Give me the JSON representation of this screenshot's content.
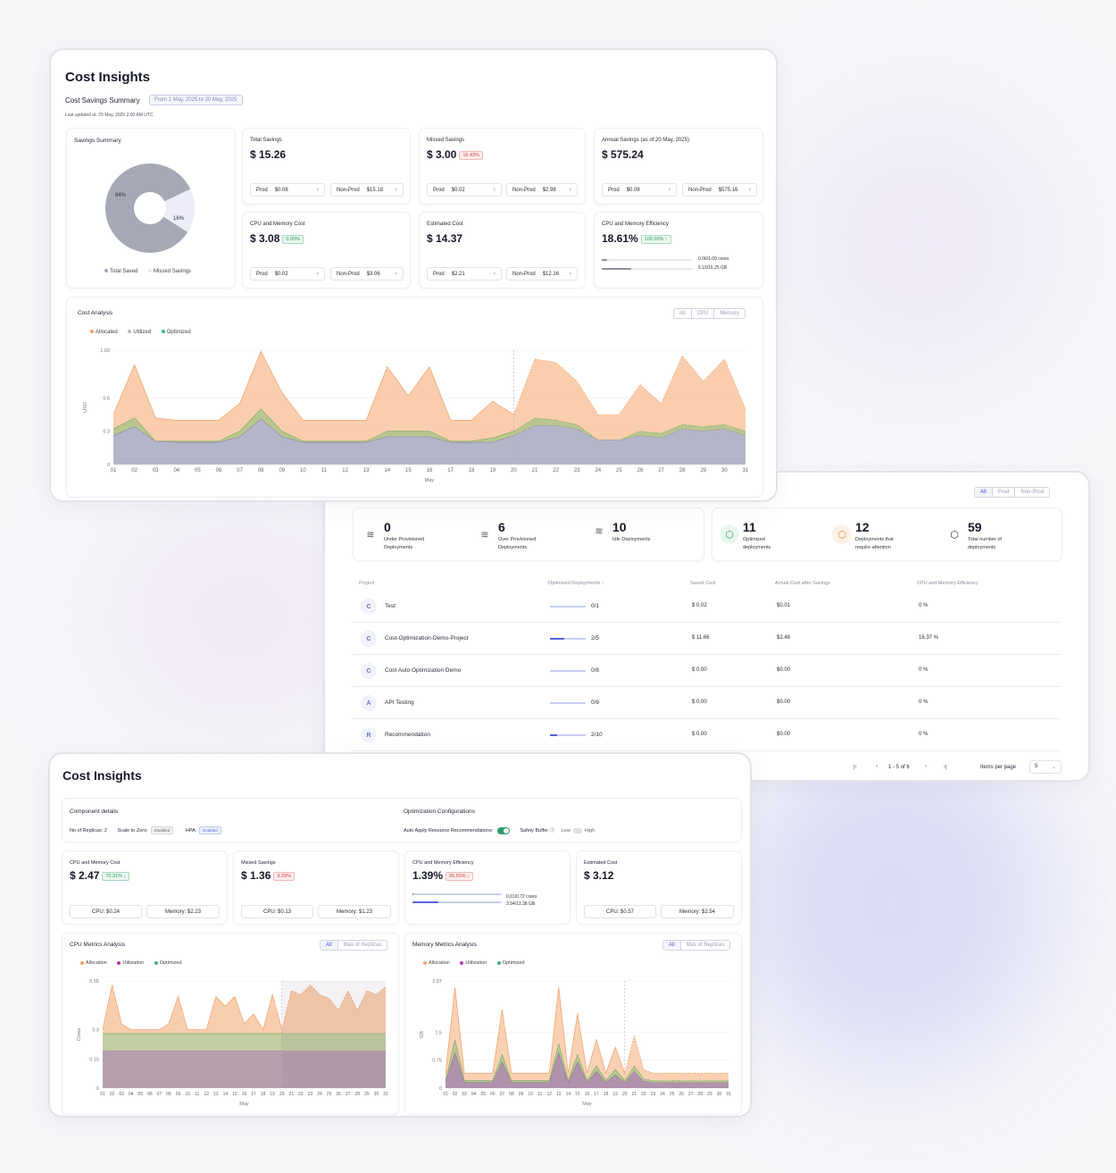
{
  "colors": {
    "allocated": "#f7b98a",
    "utilized": "#a9aac0",
    "optimized": "#3fb37f",
    "accent": "#4a55c7"
  },
  "top": {
    "title": "Cost Insights",
    "summary_label": "Cost Savings Summary",
    "date_range": "From 1 May, 2025 to 20 May, 2025",
    "last_updated": "Last updated at: 20 May, 2025 2.00 AM UTC",
    "savings_summary": {
      "title": "Savings Summary",
      "saved_pct": "84%",
      "missed_pct": "16%",
      "saved_value": 84,
      "missed_value": 16,
      "legend_saved": "Total Saved",
      "legend_missed": "Missed Savings"
    },
    "cards": [
      {
        "title": "Total Savings",
        "value": "$ 15.26",
        "badge": "",
        "prod_label": "Prod",
        "prod": "$0.08",
        "nonprod_label": "Non-Prod",
        "nonprod": "$15.18"
      },
      {
        "title": "Missed Savings",
        "value": "$ 3.00",
        "badge": "16.43%",
        "prod_label": "Prod",
        "prod": "$0.02",
        "nonprod_label": "Non-Prod",
        "nonprod": "$2.98"
      },
      {
        "title": "Annual Savings (as of 20 May, 2025)",
        "value": "$ 575.24",
        "badge": "",
        "prod_label": "Prod",
        "prod": "$0.08",
        "nonprod_label": "Non-Prod",
        "nonprod": "$575.16"
      },
      {
        "title": "CPU and Memory Cost",
        "value": "$ 3.08",
        "badge": "0.00%",
        "prod_label": "Prod",
        "prod": "$0.02",
        "nonprod_label": "Non-Prod",
        "nonprod": "$3.06"
      },
      {
        "title": "Estimated Cost",
        "value": "$ 14.37",
        "badge": "",
        "prod_label": "Prod",
        "prod": "$2.21",
        "nonprod_label": "Non-Prod",
        "nonprod": "$12.16"
      }
    ],
    "efficiency": {
      "title": "CPU and Memory Efficiency",
      "value": "18.61%",
      "badge": "100.00% ↑",
      "cpu_label": "0.06/1.09 cores",
      "mem_label": "5.15/16.25 GB",
      "cpu_frac": 0.055,
      "mem_frac": 0.32
    }
  },
  "top_chart": {
    "title": "Cost Analysis",
    "filters": [
      "All",
      "CPU",
      "Memory"
    ],
    "legend": [
      "Allocated",
      "Utilized",
      "Optimized"
    ],
    "ylabel": "USD",
    "xlabel": "May",
    "yticks": [
      "1.03",
      "0.6",
      "0.3",
      "0"
    ]
  },
  "chart_data": [
    {
      "type": "area",
      "title": "Cost Analysis",
      "xlabel": "May",
      "ylabel": "USD",
      "ylim": [
        0,
        1.03
      ],
      "x": [
        "01",
        "02",
        "03",
        "04",
        "05",
        "06",
        "07",
        "08",
        "09",
        "10",
        "11",
        "12",
        "13",
        "14",
        "15",
        "16",
        "17",
        "18",
        "19",
        "20",
        "21",
        "22",
        "23",
        "24",
        "25",
        "26",
        "27",
        "28",
        "29",
        "30",
        "31"
      ],
      "forecast_from": "20",
      "series": [
        {
          "name": "Allocated",
          "values": [
            0.45,
            0.9,
            0.42,
            0.4,
            0.4,
            0.4,
            0.55,
            1.02,
            0.65,
            0.4,
            0.4,
            0.4,
            0.4,
            0.88,
            0.62,
            0.88,
            0.4,
            0.4,
            0.57,
            0.45,
            0.95,
            0.92,
            0.75,
            0.45,
            0.45,
            0.72,
            0.55,
            0.98,
            0.75,
            0.95,
            0.5
          ]
        },
        {
          "name": "Optimized",
          "values": [
            0.32,
            0.42,
            0.21,
            0.21,
            0.21,
            0.21,
            0.3,
            0.5,
            0.3,
            0.21,
            0.21,
            0.21,
            0.21,
            0.3,
            0.3,
            0.3,
            0.21,
            0.21,
            0.24,
            0.3,
            0.42,
            0.4,
            0.36,
            0.22,
            0.22,
            0.3,
            0.28,
            0.36,
            0.34,
            0.36,
            0.3
          ]
        },
        {
          "name": "Utilized",
          "values": [
            0.26,
            0.34,
            0.21,
            0.2,
            0.2,
            0.2,
            0.25,
            0.41,
            0.25,
            0.2,
            0.2,
            0.2,
            0.2,
            0.25,
            0.25,
            0.25,
            0.2,
            0.2,
            0.2,
            0.26,
            0.35,
            0.35,
            0.32,
            0.22,
            0.22,
            0.26,
            0.24,
            0.32,
            0.3,
            0.32,
            0.26
          ]
        }
      ]
    },
    {
      "type": "area",
      "title": "CPU Metrics Analysis",
      "xlabel": "May",
      "ylabel": "Cores",
      "ylim": [
        0,
        0.55
      ],
      "yticks": [
        "0.55",
        "0.3",
        "0.15",
        "0"
      ],
      "forecast_from": "20",
      "series": [
        {
          "name": "Allocation",
          "values": [
            0.3,
            0.53,
            0.33,
            0.3,
            0.3,
            0.3,
            0.3,
            0.33,
            0.47,
            0.3,
            0.3,
            0.3,
            0.47,
            0.42,
            0.47,
            0.33,
            0.38,
            0.3,
            0.48,
            0.3,
            0.5,
            0.48,
            0.53,
            0.48,
            0.46,
            0.4,
            0.5,
            0.4,
            0.5,
            0.48,
            0.52
          ]
        },
        {
          "name": "Optimization",
          "values": [
            0.28,
            0.28,
            0.28,
            0.28,
            0.28,
            0.28,
            0.28,
            0.28,
            0.28,
            0.28,
            0.28,
            0.28,
            0.28,
            0.28,
            0.28,
            0.28,
            0.28,
            0.28,
            0.28,
            0.28,
            0.28,
            0.28,
            0.28,
            0.28,
            0.28,
            0.28,
            0.28,
            0.28,
            0.28,
            0.28,
            0.28
          ]
        },
        {
          "name": "Utilization",
          "values": [
            0.19,
            0.19,
            0.19,
            0.19,
            0.19,
            0.19,
            0.19,
            0.19,
            0.19,
            0.19,
            0.19,
            0.19,
            0.19,
            0.19,
            0.19,
            0.19,
            0.19,
            0.19,
            0.19,
            0.19,
            0.19,
            0.19,
            0.19,
            0.19,
            0.19,
            0.19,
            0.19,
            0.19,
            0.19,
            0.19,
            0.19
          ]
        }
      ]
    },
    {
      "type": "area",
      "title": "Memory Metrics Analysis",
      "xlabel": "May",
      "ylabel": "GB",
      "ylim": [
        0,
        2.87
      ],
      "yticks": [
        "2.87",
        "1.5",
        "0.75",
        "0"
      ],
      "forecast_from": "20",
      "series": [
        {
          "name": "Allocation",
          "values": [
            0.4,
            2.7,
            0.4,
            0.4,
            0.4,
            0.4,
            2.1,
            0.4,
            0.4,
            0.4,
            0.4,
            0.4,
            2.7,
            0.4,
            2.0,
            0.4,
            1.3,
            0.4,
            1.1,
            0.4,
            1.4,
            0.5,
            0.4,
            0.4,
            0.4,
            0.4,
            0.4,
            0.4,
            0.4,
            0.4,
            0.4
          ]
        },
        {
          "name": "Optimization",
          "values": [
            0.2,
            1.3,
            0.2,
            0.2,
            0.2,
            0.2,
            0.9,
            0.2,
            0.2,
            0.2,
            0.2,
            0.2,
            1.2,
            0.2,
            0.9,
            0.2,
            0.6,
            0.2,
            0.5,
            0.2,
            0.6,
            0.25,
            0.2,
            0.2,
            0.2,
            0.2,
            0.2,
            0.2,
            0.2,
            0.2,
            0.2
          ]
        },
        {
          "name": "Utilization",
          "values": [
            0.15,
            0.95,
            0.15,
            0.15,
            0.15,
            0.15,
            0.7,
            0.15,
            0.15,
            0.15,
            0.15,
            0.15,
            0.95,
            0.15,
            0.7,
            0.15,
            0.45,
            0.15,
            0.35,
            0.15,
            0.45,
            0.18,
            0.15,
            0.15,
            0.15,
            0.15,
            0.15,
            0.15,
            0.15,
            0.15,
            0.15
          ]
        }
      ]
    }
  ],
  "mid": {
    "filters": [
      "All",
      "Prod",
      "Non-Prod"
    ],
    "tiles_left": [
      {
        "value": "0",
        "label1": "Under Provisioned",
        "label2": "Deployments"
      },
      {
        "value": "6",
        "label1": "Over Provisioned",
        "label2": "Deployments"
      },
      {
        "value": "10",
        "label1": "Idle Deployments",
        "label2": ""
      }
    ],
    "tiles_right": [
      {
        "value": "11",
        "label1": "Optimized",
        "label2": "deployments"
      },
      {
        "value": "12",
        "label1": "Deployments that",
        "label2": "require attention"
      },
      {
        "value": "59",
        "label1": "Total number of",
        "label2": "deployments"
      }
    ],
    "headers": [
      "Project",
      "Optimized Deployments ↑",
      "Saved Cost",
      "Actual Cost after Savings",
      "CPU and Memory Efficiency"
    ],
    "rows": [
      {
        "initial": "C",
        "name": "Test",
        "opt": "0/1",
        "frac": 0.0,
        "saved": "$ 0.02",
        "actual": "$0.01",
        "eff": "0 %"
      },
      {
        "initial": "C",
        "name": "Cost-Optimization-Demo-Project",
        "opt": "2/5",
        "frac": 0.4,
        "saved": "$ 11.66",
        "actual": "$2.48",
        "eff": "16.37 %"
      },
      {
        "initial": "C",
        "name": "Cost Auto Optimization Demo",
        "opt": "0/8",
        "frac": 0.0,
        "saved": "$ 0.00",
        "actual": "$0.00",
        "eff": "0 %"
      },
      {
        "initial": "A",
        "name": "API Testing",
        "opt": "0/9",
        "frac": 0.0,
        "saved": "$ 0.00",
        "actual": "$0.00",
        "eff": "0 %"
      },
      {
        "initial": "R",
        "name": "Recommendation",
        "opt": "2/10",
        "frac": 0.2,
        "saved": "$ 0.00",
        "actual": "$0.00",
        "eff": "0 %"
      }
    ],
    "pager": {
      "first": "|‹",
      "prev": "‹",
      "range": "1 - 5 of 6",
      "next": "›",
      "last": "›|",
      "ipp_label": "Items per page",
      "ipp": "5"
    }
  },
  "bottom": {
    "title": "Cost Insights",
    "component": {
      "title": "Component details",
      "replicas": "No of Replicas: 2",
      "scale_label": "Scale to Zero:",
      "scale_badge": "Disabled",
      "hpa_label": "HPA:",
      "hpa_badge": "Enabled"
    },
    "optimization": {
      "title": "Optimization Configurations",
      "auto_label": "Auto Apply Resource Recommendations:",
      "buffer_label": "Safety Buffer ⓘ",
      "low": "Low",
      "high": "High"
    },
    "cards": [
      {
        "title": "CPU and Memory Cost",
        "value": "$ 2.47",
        "badge": "70.31% ↓",
        "cpu": "CPU: $0.24",
        "mem": "Memory: $2.23"
      },
      {
        "title": "Missed Savings",
        "value": "$ 1.36",
        "badge": "9.29%",
        "cpu": "CPU: $0.13",
        "mem": "Memory: $1.23"
      },
      {
        "title": "Estimated Cost",
        "value": "$ 3.12",
        "badge": "",
        "cpu": "CPU: $0.57",
        "mem": "Memory: $2.54"
      }
    ],
    "efficiency": {
      "title": "CPU and Memory Efficiency",
      "value": "1.39%",
      "badge": "95.55% ↓",
      "cpu_label": "0.01/0.72 cores",
      "mem_label": "3.94/13.38 GB",
      "cpu_frac": 0.014,
      "mem_frac": 0.29
    },
    "cpu_chart": {
      "title": "CPU Metrics Analysis",
      "filters": [
        "All",
        "Max of Replicas"
      ],
      "legend": [
        "Allocation",
        "Utilization",
        "Optimized"
      ]
    },
    "mem_chart": {
      "title": "Memory Metrics Analysis",
      "filters": [
        "All",
        "Max of Replicas"
      ],
      "legend": [
        "Allocation",
        "Utilization",
        "Optimized"
      ]
    }
  }
}
